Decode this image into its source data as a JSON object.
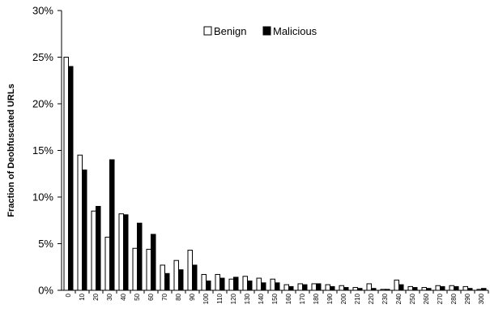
{
  "chart_data": {
    "type": "bar",
    "title": "",
    "xlabel": "",
    "ylabel": "Fraction of Deobfuscated URLs",
    "ylim": [
      0,
      30
    ],
    "yticks": [
      "0%",
      "5%",
      "10%",
      "15%",
      "20%",
      "25%",
      "30%"
    ],
    "grid": false,
    "legend_position": "top-center",
    "categories": [
      "0",
      "10",
      "20",
      "30",
      "40",
      "50",
      "60",
      "70",
      "80",
      "90",
      "100",
      "110",
      "120",
      "130",
      "140",
      "150",
      "160",
      "170",
      "180",
      "190",
      "200",
      "210",
      "220",
      "230",
      "240",
      "250",
      "260",
      "270",
      "280",
      "290",
      "300"
    ],
    "series": [
      {
        "name": "Benign",
        "color": "#ffffff",
        "values": [
          25.0,
          14.5,
          8.5,
          5.7,
          8.2,
          4.5,
          4.4,
          2.7,
          3.2,
          4.3,
          1.7,
          1.7,
          1.2,
          1.5,
          1.3,
          1.2,
          0.6,
          0.7,
          0.7,
          0.6,
          0.5,
          0.3,
          0.7,
          0.1,
          1.1,
          0.4,
          0.3,
          0.5,
          0.5,
          0.4,
          0.1
        ]
      },
      {
        "name": "Malicious",
        "color": "#000000",
        "values": [
          24.0,
          12.9,
          9.0,
          14.0,
          8.1,
          7.2,
          6.0,
          1.8,
          2.2,
          2.7,
          1.0,
          1.3,
          1.4,
          1.0,
          0.8,
          0.8,
          0.4,
          0.6,
          0.7,
          0.4,
          0.3,
          0.2,
          0.2,
          0.1,
          0.6,
          0.3,
          0.2,
          0.4,
          0.4,
          0.2,
          0.2
        ]
      }
    ]
  }
}
